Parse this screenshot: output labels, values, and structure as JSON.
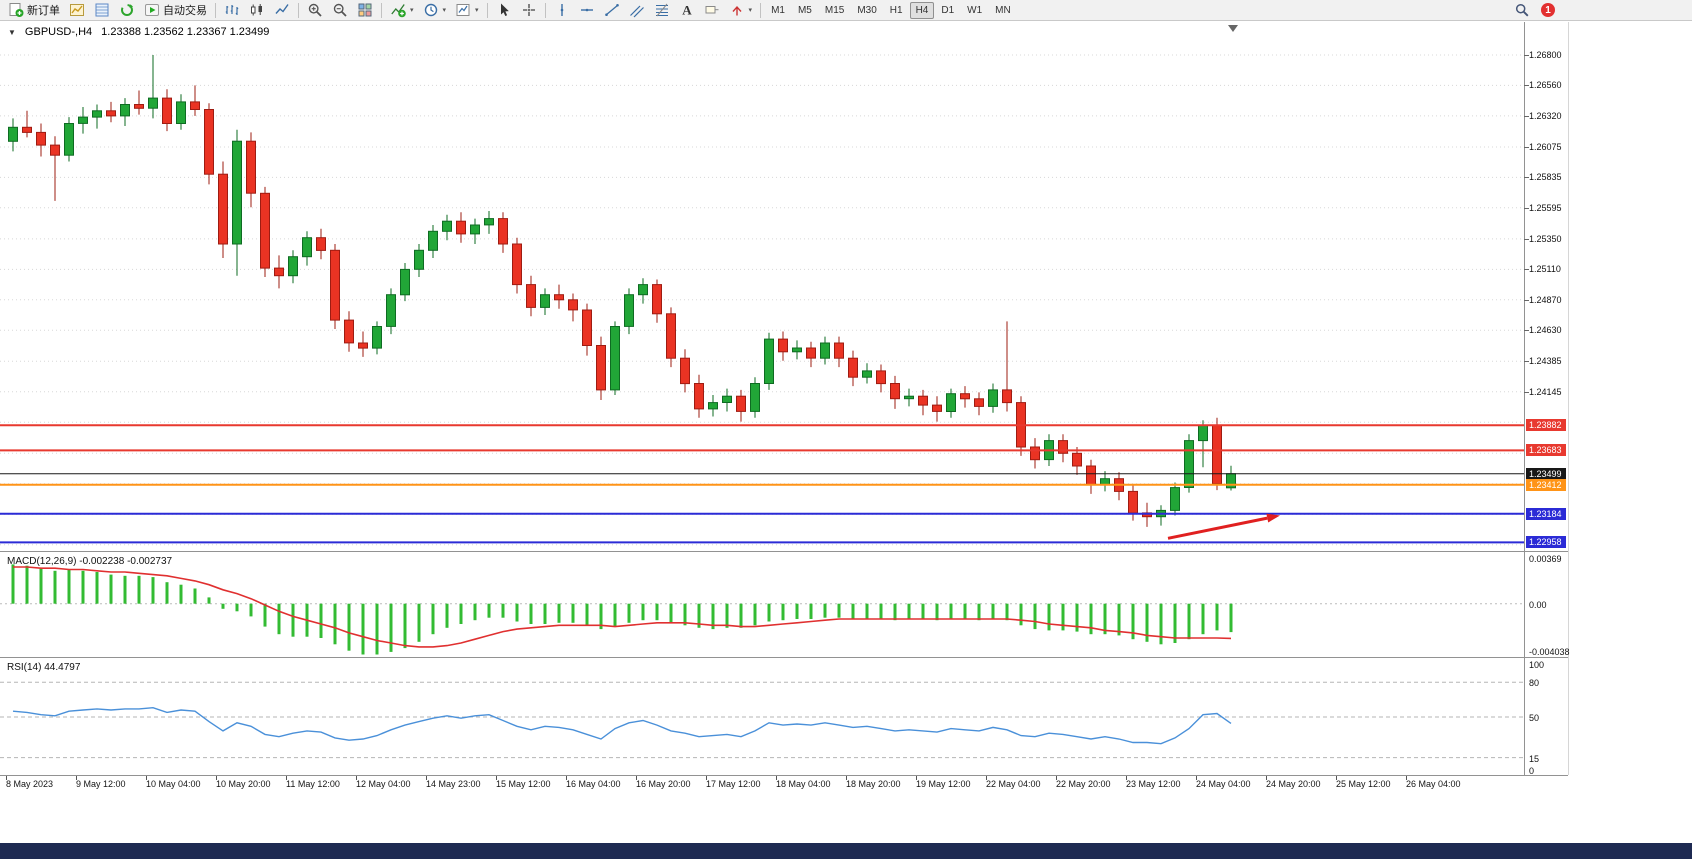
{
  "window": {
    "app": "MetaTrader 4"
  },
  "notifications": {
    "count": "1"
  },
  "header": {
    "symbol_period": "GBPUSD-,H4",
    "ohlc": "1.23388 1.23562 1.23367 1.23499"
  },
  "toolbar": {
    "items": [
      {
        "type": "button",
        "name": "new-order-button",
        "icon": "new-order",
        "label": "新订单"
      },
      {
        "type": "button",
        "name": "market-watch-button",
        "icon": "market-watch"
      },
      {
        "type": "button",
        "name": "data-window-button",
        "icon": "data-window"
      },
      {
        "type": "button",
        "name": "navigator-button",
        "icon": "navigator"
      },
      {
        "type": "button",
        "name": "autotrading-button",
        "icon": "autotrading",
        "label": "自动交易"
      },
      {
        "type": "sep"
      },
      {
        "type": "button",
        "name": "bar-chart-button",
        "icon": "bars"
      },
      {
        "type": "button",
        "name": "candlestick-chart-button",
        "icon": "candles"
      },
      {
        "type": "button",
        "name": "line-chart-button",
        "icon": "line"
      },
      {
        "type": "sep"
      },
      {
        "type": "button",
        "name": "zoom-in-button",
        "icon": "zoom-in"
      },
      {
        "type": "button",
        "name": "zoom-out-button",
        "icon": "zoom-out"
      },
      {
        "type": "button",
        "name": "tile-windows-button",
        "icon": "tile-windows"
      },
      {
        "type": "sep"
      },
      {
        "type": "button",
        "name": "indicators-button",
        "icon": "indicators",
        "dropdown": true
      },
      {
        "type": "button",
        "name": "periods-button",
        "icon": "periods",
        "dropdown": true
      },
      {
        "type": "button",
        "name": "templates-button",
        "icon": "templates",
        "dropdown": true
      },
      {
        "type": "sep"
      },
      {
        "type": "button",
        "name": "cursor-button",
        "icon": "cursor"
      },
      {
        "type": "button",
        "name": "crosshair-button",
        "icon": "crosshair"
      },
      {
        "type": "sep"
      },
      {
        "type": "button",
        "name": "vertical-line-button",
        "icon": "vline"
      },
      {
        "type": "button",
        "name": "horizontal-line-button",
        "icon": "hline"
      },
      {
        "type": "button",
        "name": "trendline-button",
        "icon": "trendline"
      },
      {
        "type": "button",
        "name": "channel-button",
        "icon": "channel"
      },
      {
        "type": "button",
        "name": "fibonacci-button",
        "icon": "fibonacci"
      },
      {
        "type": "button",
        "name": "text-button",
        "icon": "text"
      },
      {
        "type": "button",
        "name": "label-button",
        "icon": "label"
      },
      {
        "type": "button",
        "name": "arrows-button",
        "icon": "arrows",
        "dropdown": true
      },
      {
        "type": "sep"
      }
    ],
    "timeframes": [
      "M1",
      "M5",
      "M15",
      "M30",
      "H1",
      "H4",
      "D1",
      "W1",
      "MN"
    ],
    "active_timeframe": "H4"
  },
  "colors": {
    "up": "#21a637",
    "up_dark": "#0e6b22",
    "down": "#ea3323",
    "down_dark": "#9e1c12",
    "grid": "#d8d8d8",
    "macd_hist": "#33bb33",
    "macd_signal": "#e03030",
    "rsi": "#4a90d9",
    "arrow": "#e02020",
    "line_red": "#e8392f",
    "line_blue": "#2b2bd6",
    "line_orange": "#ff9417",
    "line_black": "#181818"
  },
  "chart_data": {
    "type": "candlestick",
    "symbol": "GBPUSD-",
    "timeframe": "H4",
    "current_ohlc": {
      "open": "1.23388",
      "high": "1.23562",
      "low": "1.23367",
      "close": "1.23499"
    },
    "price_axis": {
      "top": 1.2706,
      "bottom": 1.2289,
      "gridlines": [
        {
          "value": 1.268,
          "label": "1.26800"
        },
        {
          "value": 1.2656,
          "label": "1.26560"
        },
        {
          "value": 1.2632,
          "label": "1.26320"
        },
        {
          "value": 1.26075,
          "label": "1.26075"
        },
        {
          "value": 1.25835,
          "label": "1.25835"
        },
        {
          "value": 1.25595,
          "label": "1.25595"
        },
        {
          "value": 1.2535,
          "label": "1.25350"
        },
        {
          "value": 1.2511,
          "label": "1.25110"
        },
        {
          "value": 1.2487,
          "label": "1.24870"
        },
        {
          "value": 1.2463,
          "label": "1.24630"
        },
        {
          "value": 1.24385,
          "label": "1.24385"
        },
        {
          "value": 1.24145,
          "label": "1.24145"
        }
      ],
      "minor_gridlines": [
        1.23905,
        1.2366,
        1.2342,
        1.2318,
        1.2294
      ]
    },
    "hlines": [
      {
        "price": 1.23882,
        "label": "1.23882",
        "color": "#e8392f",
        "width": 2
      },
      {
        "price": 1.23683,
        "label": "1.23683",
        "color": "#e8392f",
        "width": 2
      },
      {
        "price": 1.23499,
        "label": "1.23499",
        "color": "#181818",
        "width": 1
      },
      {
        "price": 1.23412,
        "label": "1.23412",
        "color": "#ff9417",
        "width": 2
      },
      {
        "price": 1.23184,
        "label": "1.23184",
        "color": "#2b2bd6",
        "width": 2
      },
      {
        "price": 1.22958,
        "label": "1.22958",
        "color": "#2b2bd6",
        "width": 2
      }
    ],
    "arrow": {
      "from": {
        "i": 82.5,
        "p": 1.2299
      },
      "to": {
        "i": 90.5,
        "p": 1.2317
      }
    },
    "candles": [
      [
        1.2612,
        1.263,
        1.2604,
        1.2623
      ],
      [
        1.2623,
        1.2636,
        1.2615,
        1.2619
      ],
      [
        1.2619,
        1.2626,
        1.26,
        1.2609
      ],
      [
        1.2609,
        1.2616,
        1.2565,
        1.2601
      ],
      [
        1.2601,
        1.2631,
        1.2596,
        1.2626
      ],
      [
        1.2626,
        1.2639,
        1.2618,
        1.2631
      ],
      [
        1.2631,
        1.2641,
        1.2622,
        1.2636
      ],
      [
        1.2636,
        1.2643,
        1.2627,
        1.2632
      ],
      [
        1.2632,
        1.2646,
        1.2624,
        1.2641
      ],
      [
        1.2641,
        1.2652,
        1.2633,
        1.2638
      ],
      [
        1.2638,
        1.268,
        1.263,
        1.2646
      ],
      [
        1.2646,
        1.2653,
        1.262,
        1.2626
      ],
      [
        1.2626,
        1.2649,
        1.2621,
        1.2643
      ],
      [
        1.2643,
        1.2656,
        1.2632,
        1.2637
      ],
      [
        1.2637,
        1.2642,
        1.2578,
        1.2586
      ],
      [
        1.2586,
        1.2596,
        1.252,
        1.2531
      ],
      [
        1.2531,
        1.2621,
        1.2506,
        1.2612
      ],
      [
        1.2612,
        1.2619,
        1.256,
        1.2571
      ],
      [
        1.2571,
        1.2576,
        1.2505,
        1.2512
      ],
      [
        1.2512,
        1.2522,
        1.2496,
        1.2506
      ],
      [
        1.2506,
        1.2526,
        1.25,
        1.2521
      ],
      [
        1.2521,
        1.2541,
        1.2514,
        1.2536
      ],
      [
        1.2536,
        1.2543,
        1.2519,
        1.2526
      ],
      [
        1.2526,
        1.2531,
        1.2464,
        1.2471
      ],
      [
        1.2471,
        1.2478,
        1.2446,
        1.2453
      ],
      [
        1.2453,
        1.2462,
        1.2442,
        1.2449
      ],
      [
        1.2449,
        1.247,
        1.2444,
        1.2466
      ],
      [
        1.2466,
        1.2496,
        1.246,
        1.2491
      ],
      [
        1.2491,
        1.2516,
        1.2486,
        1.2511
      ],
      [
        1.2511,
        1.2531,
        1.2505,
        1.2526
      ],
      [
        1.2526,
        1.2546,
        1.252,
        1.2541
      ],
      [
        1.2541,
        1.2554,
        1.2534,
        1.2549
      ],
      [
        1.2549,
        1.2556,
        1.2532,
        1.2539
      ],
      [
        1.2539,
        1.2551,
        1.2531,
        1.2546
      ],
      [
        1.2546,
        1.2557,
        1.2539,
        1.2551
      ],
      [
        1.2551,
        1.2556,
        1.2524,
        1.2531
      ],
      [
        1.2531,
        1.2536,
        1.2492,
        1.2499
      ],
      [
        1.2499,
        1.2506,
        1.2474,
        1.2481
      ],
      [
        1.2481,
        1.2496,
        1.2475,
        1.2491
      ],
      [
        1.2491,
        1.2499,
        1.248,
        1.2487
      ],
      [
        1.2487,
        1.2492,
        1.247,
        1.2479
      ],
      [
        1.2479,
        1.2484,
        1.2443,
        1.2451
      ],
      [
        1.2451,
        1.2458,
        1.2408,
        1.2416
      ],
      [
        1.2416,
        1.247,
        1.2412,
        1.2466
      ],
      [
        1.2466,
        1.2496,
        1.246,
        1.2491
      ],
      [
        1.2491,
        1.2504,
        1.2484,
        1.2499
      ],
      [
        1.2499,
        1.2503,
        1.2469,
        1.2476
      ],
      [
        1.2476,
        1.2481,
        1.2434,
        1.2441
      ],
      [
        1.2441,
        1.2448,
        1.2414,
        1.2421
      ],
      [
        1.2421,
        1.2428,
        1.2394,
        1.2401
      ],
      [
        1.2401,
        1.2412,
        1.2395,
        1.2406
      ],
      [
        1.2406,
        1.2417,
        1.2399,
        1.2411
      ],
      [
        1.2411,
        1.2416,
        1.2391,
        1.2399
      ],
      [
        1.2399,
        1.2426,
        1.2394,
        1.2421
      ],
      [
        1.2421,
        1.2461,
        1.2416,
        1.2456
      ],
      [
        1.2456,
        1.2462,
        1.2439,
        1.2446
      ],
      [
        1.2446,
        1.2455,
        1.244,
        1.2449
      ],
      [
        1.2449,
        1.2454,
        1.2434,
        1.2441
      ],
      [
        1.2441,
        1.2458,
        1.2436,
        1.2453
      ],
      [
        1.2453,
        1.2458,
        1.2434,
        1.2441
      ],
      [
        1.2441,
        1.2447,
        1.2419,
        1.2426
      ],
      [
        1.2426,
        1.2437,
        1.2421,
        1.2431
      ],
      [
        1.2431,
        1.2436,
        1.2414,
        1.2421
      ],
      [
        1.2421,
        1.2427,
        1.2401,
        1.2409
      ],
      [
        1.2409,
        1.2417,
        1.2403,
        1.2411
      ],
      [
        1.2411,
        1.2416,
        1.2396,
        1.2404
      ],
      [
        1.2404,
        1.2411,
        1.2391,
        1.2399
      ],
      [
        1.2399,
        1.2417,
        1.2394,
        1.2413
      ],
      [
        1.2413,
        1.2419,
        1.2402,
        1.2409
      ],
      [
        1.2409,
        1.2414,
        1.2396,
        1.2403
      ],
      [
        1.2403,
        1.2421,
        1.2398,
        1.2416
      ],
      [
        1.2416,
        1.247,
        1.2399,
        1.2406
      ],
      [
        1.2406,
        1.2411,
        1.2364,
        1.2371
      ],
      [
        1.2371,
        1.2378,
        1.2354,
        1.2361
      ],
      [
        1.2361,
        1.2381,
        1.2356,
        1.2376
      ],
      [
        1.2376,
        1.2381,
        1.2359,
        1.2366
      ],
      [
        1.2366,
        1.2371,
        1.2349,
        1.2356
      ],
      [
        1.2356,
        1.2361,
        1.2334,
        1.2341
      ],
      [
        1.2341,
        1.2352,
        1.2336,
        1.2346
      ],
      [
        1.2346,
        1.2351,
        1.2329,
        1.2336
      ],
      [
        1.2336,
        1.2341,
        1.2313,
        1.2319
      ],
      [
        1.2319,
        1.2327,
        1.2308,
        1.2316
      ],
      [
        1.2316,
        1.2325,
        1.2309,
        1.2321
      ],
      [
        1.2321,
        1.2343,
        1.2317,
        1.2339
      ],
      [
        1.2339,
        1.2381,
        1.2335,
        1.2376
      ],
      [
        1.2376,
        1.2392,
        1.2355,
        1.2388
      ],
      [
        1.2388,
        1.2394,
        1.2337,
        1.2342
      ],
      [
        1.23388,
        1.23562,
        1.23367,
        1.23499
      ]
    ],
    "macd": {
      "label": "MACD(12,26,9) -0.002238 -0.002737",
      "range": {
        "max": 0.004,
        "min": -0.0042
      },
      "axis": [
        {
          "value": 0.00369,
          "label": "0.00369"
        },
        {
          "value": 0,
          "label": "0.00"
        },
        {
          "value": -0.004038,
          "label": "-0.004038"
        }
      ],
      "values": [
        0.0031,
        0.003,
        0.0028,
        0.0026,
        0.0027,
        0.0026,
        0.0025,
        0.0023,
        0.0022,
        0.0022,
        0.0021,
        0.0017,
        0.0015,
        0.0012,
        0.0005,
        -0.0004,
        -0.0006,
        -0.001,
        -0.0018,
        -0.0024,
        -0.0026,
        -0.0026,
        -0.0027,
        -0.0032,
        -0.0037,
        -0.004,
        -0.004,
        -0.0038,
        -0.0035,
        -0.003,
        -0.0024,
        -0.0019,
        -0.0016,
        -0.0013,
        -0.0011,
        -0.0011,
        -0.0014,
        -0.0016,
        -0.0016,
        -0.0015,
        -0.0015,
        -0.0017,
        -0.002,
        -0.0018,
        -0.0015,
        -0.0013,
        -0.0013,
        -0.0015,
        -0.0017,
        -0.0019,
        -0.002,
        -0.0019,
        -0.0019,
        -0.0017,
        -0.0014,
        -0.0013,
        -0.0012,
        -0.0012,
        -0.0011,
        -0.0011,
        -0.0012,
        -0.0012,
        -0.0012,
        -0.0013,
        -0.0012,
        -0.0012,
        -0.0013,
        -0.0012,
        -0.0012,
        -0.0013,
        -0.0012,
        -0.0013,
        -0.0017,
        -0.002,
        -0.0021,
        -0.0021,
        -0.0022,
        -0.0024,
        -0.0024,
        -0.0025,
        -0.0028,
        -0.003,
        -0.0032,
        -0.0031,
        -0.0028,
        -0.0024,
        -0.0021,
        -0.002238
      ],
      "signal": [
        0.0029,
        0.0029,
        0.0028,
        0.0028,
        0.0027,
        0.0027,
        0.0026,
        0.0025,
        0.0025,
        0.0024,
        0.0023,
        0.0022,
        0.002,
        0.0018,
        0.0015,
        0.0011,
        0.0008,
        0.0004,
        -0.0001,
        -0.0006,
        -0.001,
        -0.0013,
        -0.0016,
        -0.0019,
        -0.0023,
        -0.0026,
        -0.0029,
        -0.0031,
        -0.0033,
        -0.0034,
        -0.0034,
        -0.0033,
        -0.0031,
        -0.0028,
        -0.0025,
        -0.0022,
        -0.002,
        -0.0019,
        -0.0018,
        -0.0017,
        -0.0017,
        -0.0017,
        -0.0017,
        -0.0018,
        -0.0017,
        -0.0016,
        -0.0015,
        -0.0015,
        -0.0015,
        -0.0016,
        -0.0017,
        -0.0017,
        -0.0018,
        -0.0018,
        -0.0017,
        -0.0016,
        -0.0015,
        -0.0014,
        -0.0013,
        -0.0012,
        -0.0012,
        -0.0012,
        -0.0012,
        -0.0012,
        -0.0012,
        -0.0012,
        -0.0012,
        -0.0012,
        -0.0012,
        -0.0012,
        -0.0012,
        -0.0012,
        -0.0013,
        -0.0014,
        -0.0016,
        -0.0017,
        -0.0018,
        -0.0019,
        -0.0021,
        -0.0022,
        -0.0023,
        -0.0025,
        -0.0026,
        -0.0027,
        -0.0027,
        -0.0027,
        -0.0027,
        -0.002737
      ]
    },
    "rsi": {
      "label": "RSI(14) 44.4797",
      "range": [
        0,
        100
      ],
      "levels": [
        80,
        50,
        15
      ],
      "axis": [
        {
          "value": 100,
          "label": "100"
        },
        {
          "value": 80,
          "label": "80"
        },
        {
          "value": 50,
          "label": "50"
        },
        {
          "value": 15,
          "label": "15"
        },
        {
          "value": 0,
          "label": "0"
        }
      ],
      "values": [
        55,
        54,
        52,
        51,
        55,
        56,
        57,
        56,
        57,
        57,
        58,
        54,
        56,
        55,
        46,
        38,
        45,
        42,
        35,
        33,
        36,
        38,
        37,
        32,
        30,
        31,
        34,
        39,
        43,
        46,
        49,
        51,
        49,
        51,
        52,
        47,
        42,
        39,
        42,
        41,
        39,
        35,
        31,
        40,
        45,
        47,
        43,
        38,
        36,
        33,
        34,
        35,
        33,
        38,
        45,
        43,
        44,
        43,
        45,
        43,
        41,
        42,
        40,
        38,
        39,
        38,
        37,
        40,
        39,
        38,
        41,
        39,
        34,
        33,
        36,
        35,
        33,
        31,
        33,
        31,
        28,
        28,
        27,
        32,
        40,
        52,
        53,
        44.4797
      ]
    },
    "date_axis": [
      "8 May 2023",
      "9 May 12:00",
      "10 May 04:00",
      "10 May 20:00",
      "11 May 12:00",
      "12 May 04:00",
      "14 May 23:00",
      "15 May 12:00",
      "16 May 04:00",
      "16 May 20:00",
      "17 May 12:00",
      "18 May 04:00",
      "18 May 20:00",
      "19 May 12:00",
      "22 May 04:00",
      "22 May 20:00",
      "23 May 12:00",
      "24 May 04:00",
      "24 May 20:00",
      "25 May 12:00",
      "26 May 04:00"
    ]
  }
}
